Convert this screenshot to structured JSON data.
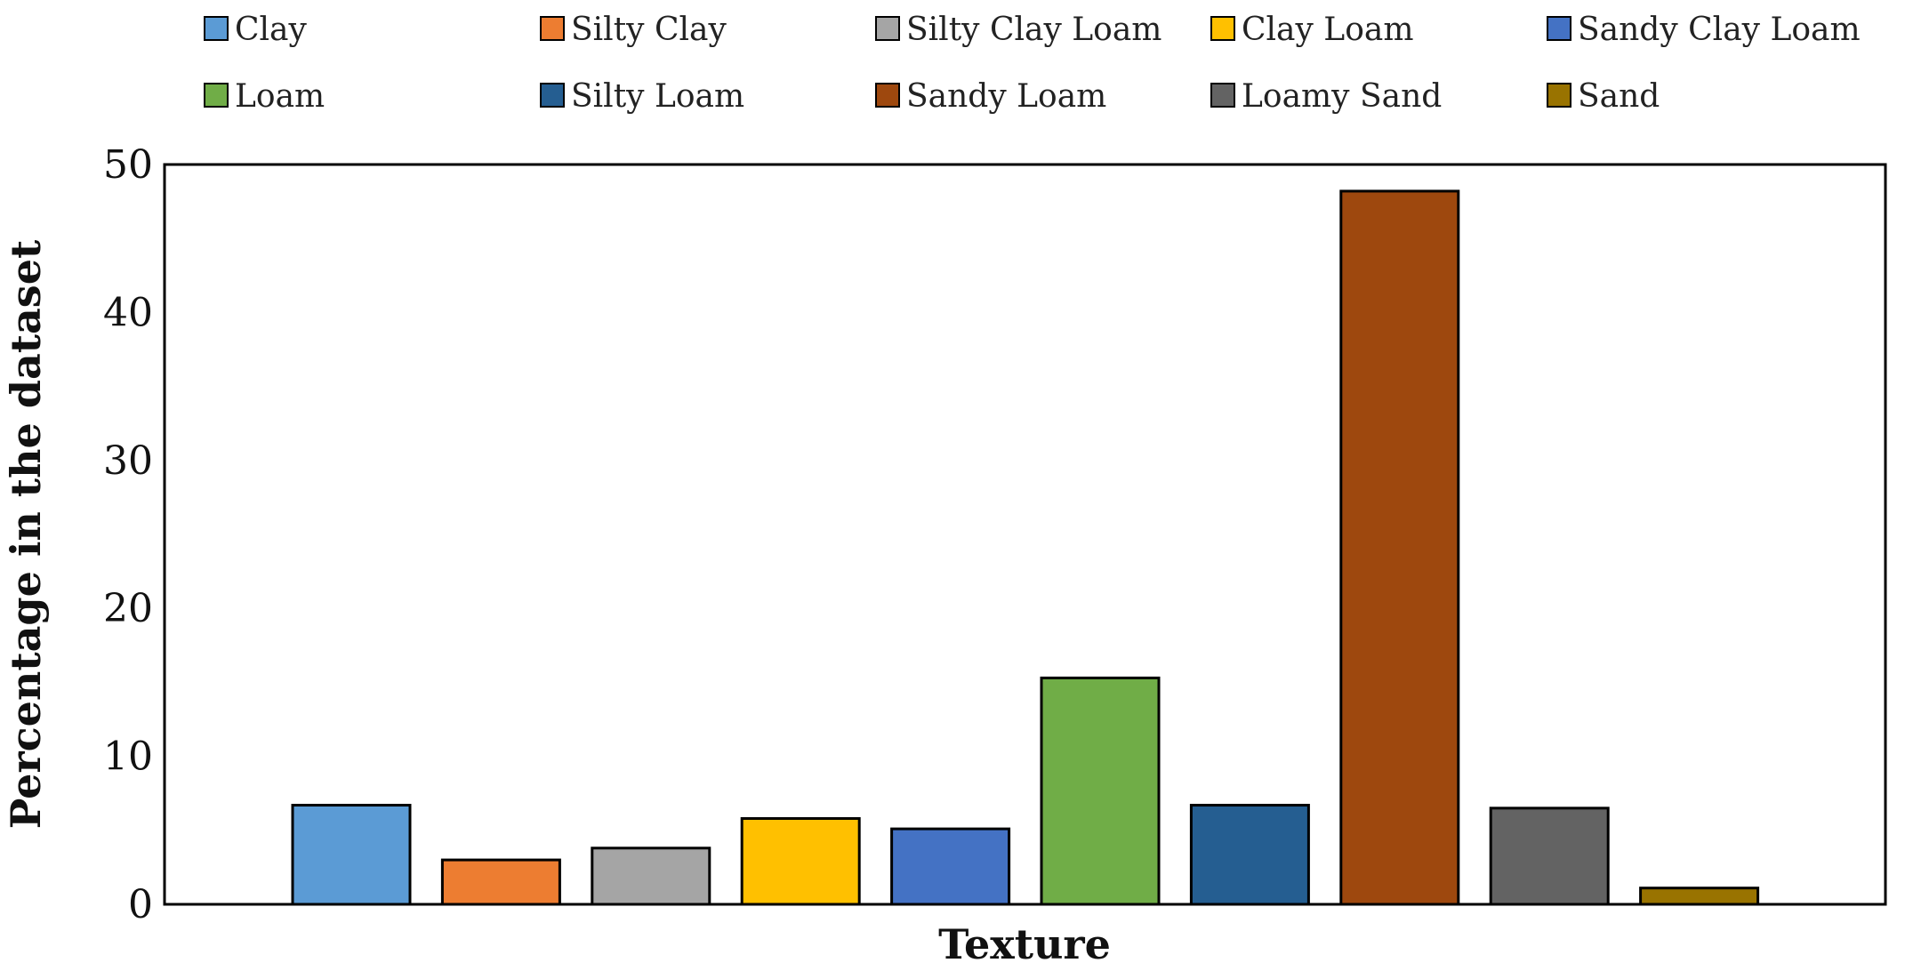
{
  "chart_data": {
    "type": "bar",
    "categories": [
      "Clay",
      "Silty Clay",
      "Silty Clay Loam",
      "Clay Loam",
      "Sandy Clay Loam",
      "Loam",
      "Silty Loam",
      "Sandy Loam",
      "Loamy Sand",
      "Sand"
    ],
    "values": [
      6.7,
      3.0,
      3.8,
      5.8,
      5.1,
      15.3,
      6.7,
      48.2,
      6.5,
      1.1
    ],
    "colors": [
      "#5b9bd5",
      "#ed7d31",
      "#a5a5a5",
      "#ffc000",
      "#4472c4",
      "#70ad47",
      "#255e91",
      "#9e480e",
      "#636363",
      "#997300"
    ],
    "xlabel": "Texture",
    "ylabel": "Percentage in the dataset",
    "ylim": [
      0,
      50
    ],
    "yticks": [
      "0",
      "10",
      "20",
      "30",
      "40",
      "50"
    ],
    "grid": false,
    "legend_position": "top"
  }
}
